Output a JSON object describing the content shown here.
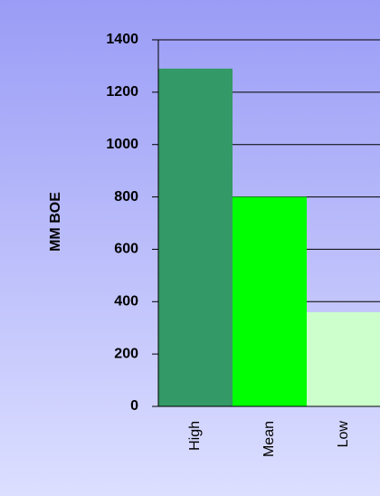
{
  "chart_data": {
    "type": "bar",
    "y_label": "MM BOE",
    "categories": [
      "High",
      "Mean",
      "Low"
    ],
    "values": [
      1290,
      800,
      360
    ],
    "colors": [
      "#339966",
      "#00ff00",
      "#ccffcc"
    ],
    "ylim": [
      0,
      1400
    ],
    "yticks": [
      0,
      200,
      400,
      600,
      800,
      1000,
      1200,
      1400
    ],
    "grid": true
  }
}
